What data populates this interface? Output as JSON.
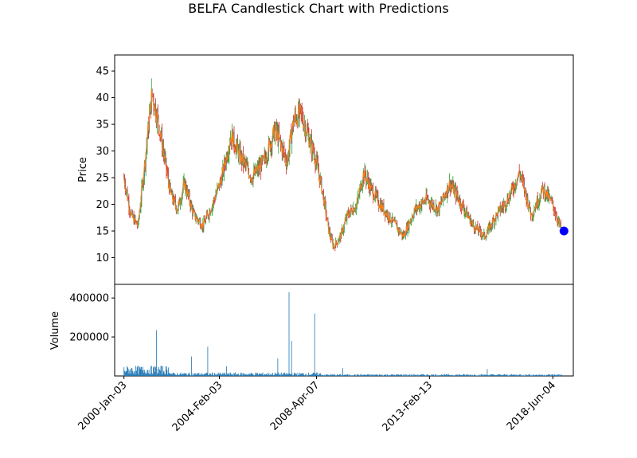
{
  "chart_data": {
    "type": "candlestick",
    "title": "BELFA Candlestick Chart with Predictions",
    "price_panel": {
      "ylabel": "Price",
      "ylim": [
        5,
        48
      ],
      "yticks": [
        10,
        15,
        20,
        25,
        30,
        35,
        40,
        45
      ],
      "colors": {
        "close": "#ff7f0e",
        "wick_up": "#2ca02c",
        "wick_down": "#d62728",
        "body": "#1f77b4"
      },
      "series_years": [
        2000.0,
        2000.3,
        2000.6,
        2000.9,
        2001.2,
        2001.5,
        2001.8,
        2002.0,
        2002.3,
        2002.6,
        2003.0,
        2003.4,
        2003.8,
        2004.2,
        2004.6,
        2005.0,
        2005.5,
        2006.0,
        2006.5,
        2007.0,
        2007.3,
        2007.6,
        2007.9,
        2008.2,
        2008.5,
        2008.8,
        2009.0,
        2009.3,
        2009.6,
        2010.0,
        2010.3,
        2010.6,
        2011.0,
        2011.5,
        2012.0,
        2012.5,
        2013.0,
        2013.5,
        2014.0,
        2014.5,
        2015.0,
        2015.5,
        2016.0,
        2016.5,
        2017.0,
        2017.5,
        2018.0,
        2018.4,
        2018.8
      ],
      "series_close": [
        25,
        18,
        16,
        28,
        41,
        35,
        27,
        22,
        19,
        24,
        18,
        16,
        20,
        25,
        33,
        29,
        25,
        28,
        34,
        28,
        36,
        37,
        33,
        29,
        23,
        15,
        12,
        14,
        18,
        20,
        26,
        23,
        20,
        17,
        14,
        19,
        21,
        19,
        24,
        20,
        16,
        14,
        18,
        21,
        26,
        18,
        23,
        20,
        15
      ],
      "prediction": {
        "year": 2018.9,
        "value": 15,
        "color": "#0000ff"
      }
    },
    "volume_panel": {
      "ylabel": "Volume",
      "ylim": [
        0,
        470000
      ],
      "yticks": [
        200000,
        400000
      ],
      "ytick_labels": [
        "200000",
        "400000"
      ],
      "color": "#1f77b4",
      "spikes": [
        {
          "year": 2001.4,
          "value": 235000
        },
        {
          "year": 2002.9,
          "value": 100000
        },
        {
          "year": 2003.6,
          "value": 150000
        },
        {
          "year": 2004.4,
          "value": 50000
        },
        {
          "year": 2006.6,
          "value": 90000
        },
        {
          "year": 2007.1,
          "value": 430000
        },
        {
          "year": 2007.2,
          "value": 180000
        },
        {
          "year": 2008.2,
          "value": 320000
        },
        {
          "year": 2009.4,
          "value": 40000
        },
        {
          "year": 2015.6,
          "value": 35000
        }
      ]
    },
    "x_axis": {
      "range": [
        1999.6,
        2019.3
      ],
      "ticks": [
        {
          "year": 2000.0,
          "label": "2000-Jan-03"
        },
        {
          "year": 2004.1,
          "label": "2004-Feb-03"
        },
        {
          "year": 2008.27,
          "label": "2008-Apr-07"
        },
        {
          "year": 2013.12,
          "label": "2013-Feb-13"
        },
        {
          "year": 2018.42,
          "label": "2018-Jun-04"
        }
      ]
    }
  }
}
